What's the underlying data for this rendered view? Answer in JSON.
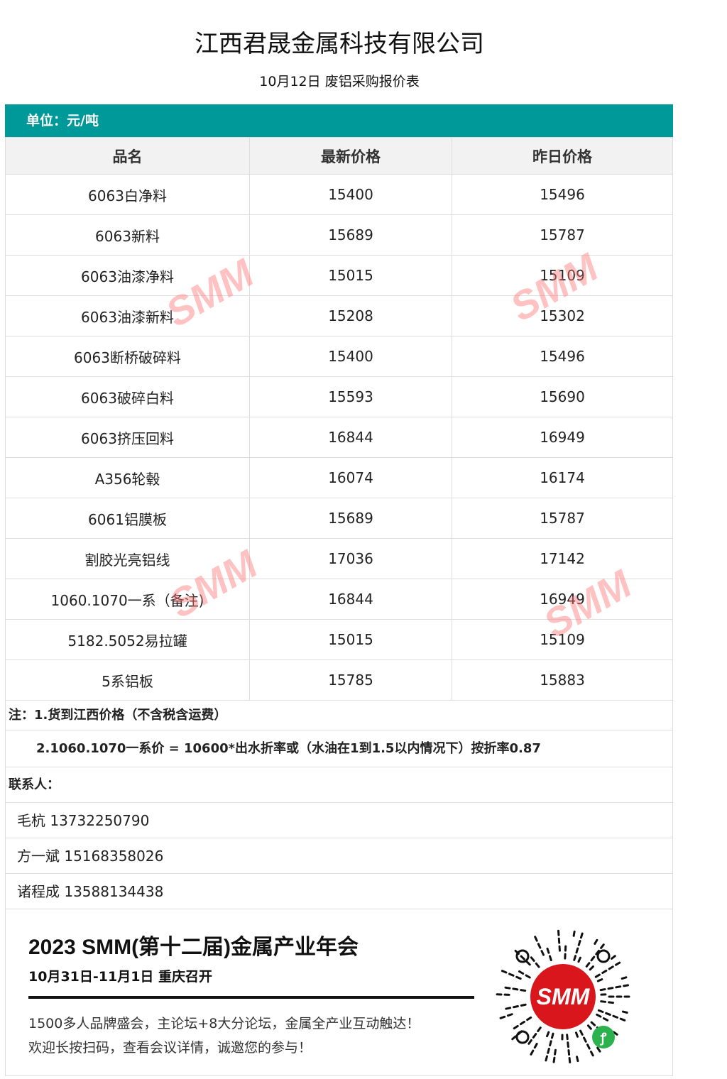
{
  "title": "江西君晟金属科技有限公司",
  "subtitle": "10月12日 废铝采购报价表",
  "unit": "单位：元/吨",
  "headers": [
    "品名",
    "最新价格",
    "昨日价格"
  ],
  "rows": [
    [
      "6063白净料",
      "15400",
      "15496"
    ],
    [
      "6063新料",
      "15689",
      "15787"
    ],
    [
      "6063油漆净料",
      "15015",
      "15109"
    ],
    [
      "6063油漆新料",
      "15208",
      "15302"
    ],
    [
      "6063断桥破碎料",
      "15400",
      "15496"
    ],
    [
      "6063破碎白料",
      "15593",
      "15690"
    ],
    [
      "6063挤压回料",
      "16844",
      "16949"
    ],
    [
      "A356轮毂",
      "16074",
      "16174"
    ],
    [
      "6061铝膜板",
      "15689",
      "15787"
    ],
    [
      "割胶光亮铝线",
      "17036",
      "17142"
    ],
    [
      "1060.1070一系（备注)",
      "16844",
      "16949"
    ],
    [
      "5182.5052易拉罐",
      "15015",
      "15109"
    ],
    [
      "5系铝板",
      "15785",
      "15883"
    ]
  ],
  "notes": [
    "注：1.货到江西价格（不含税含运费）",
    "2.1060.1070一系价 = 10600*出水折率或（水油在1到1.5以内情况下）按折率0.87"
  ],
  "contacts_label": "联系人：",
  "contacts": [
    "毛杭 13732250790",
    "方一斌 15168358026",
    "诸程成 13588134438"
  ],
  "banner": {
    "title": "2023 SMM(第十二届)金属产业年会",
    "date": "10月31日-11月1日  重庆召开",
    "line1": "1500多人品牌盛会，主论坛+8大分论坛，金属全产业互动触达！",
    "line2": "欢迎长按扫码，查看会议详情，诚邀您的参与！",
    "qr_logo": "SMM"
  },
  "watermark": "SMM",
  "colors": {
    "accent": "#009999",
    "header_bg": "#f2f2f2"
  }
}
